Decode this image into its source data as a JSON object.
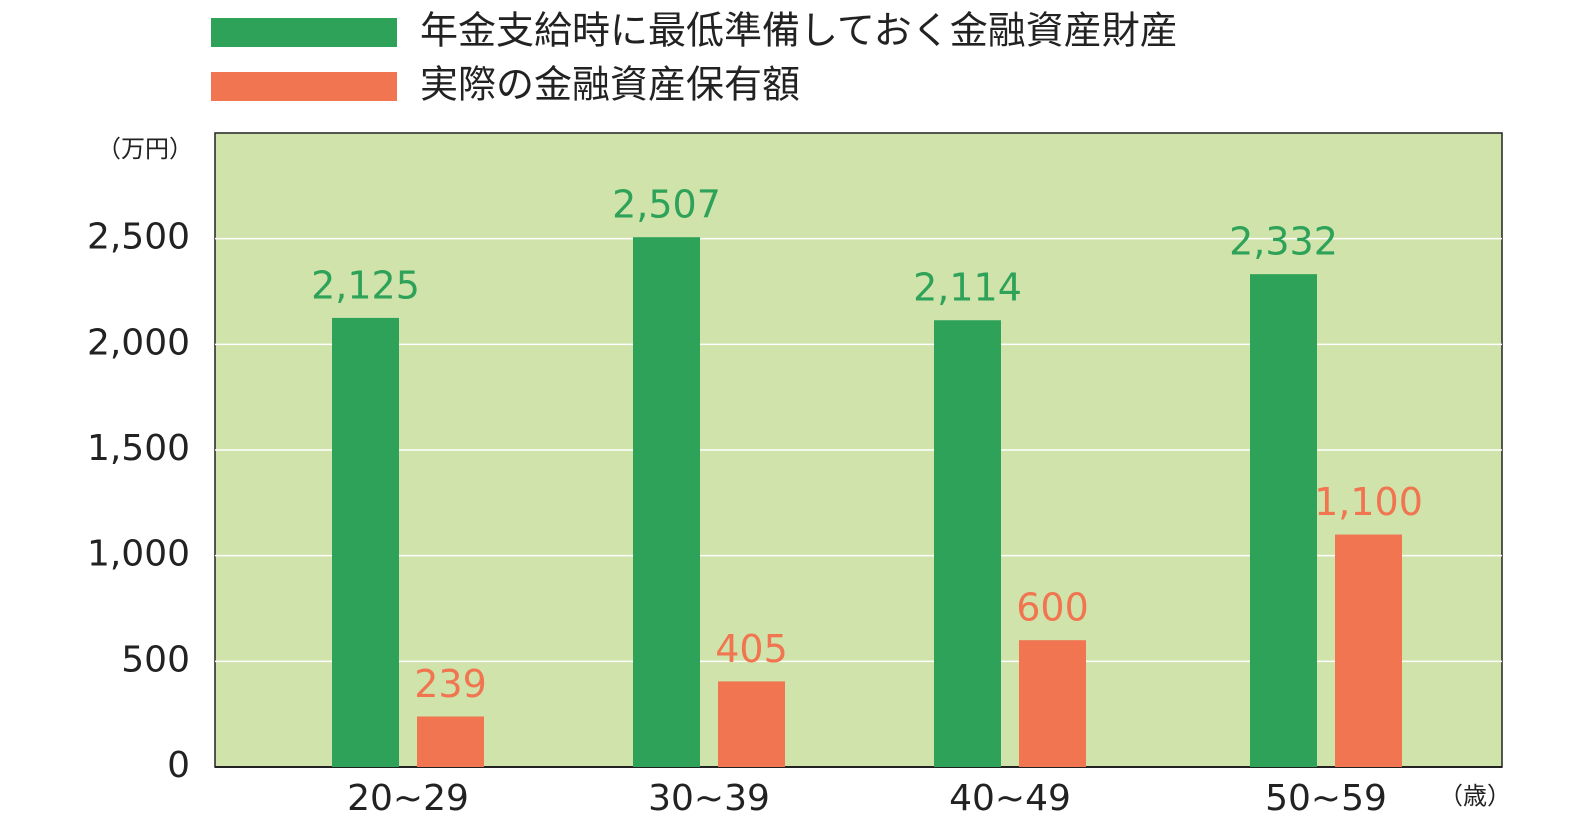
{
  "chart_data": {
    "type": "bar",
    "y_unit_label": "（万円）",
    "x_unit_label": "（歳）",
    "categories": [
      "20~29",
      "30~39",
      "40~49",
      "50~59"
    ],
    "series": [
      {
        "name": "年金支給時に最低準備しておく金融資産財産",
        "color": "#2ea258",
        "values": [
          2125,
          2507,
          2114,
          2332
        ],
        "value_labels": [
          "2,125",
          "2,507",
          "2,114",
          "2,332"
        ]
      },
      {
        "name": "実際の金融資産保有額",
        "color": "#f07550",
        "values": [
          239,
          405,
          600,
          1100
        ],
        "value_labels": [
          "239",
          "405",
          "600",
          "1,100"
        ]
      }
    ],
    "ylim": [
      0,
      3000
    ],
    "yticks": [
      0,
      500,
      {
        "value": 1000,
        "label": "1,000"
      },
      {
        "value": 1500,
        "label": "1,500"
      },
      {
        "value": 2000,
        "label": "2,000"
      },
      {
        "value": 2500,
        "label": "2,500"
      }
    ],
    "grid": true,
    "background": "#cfe3aa"
  }
}
